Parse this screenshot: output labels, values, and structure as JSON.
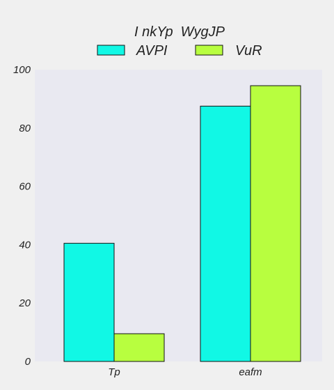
{
  "chart_data": {
    "type": "bar",
    "title": "",
    "xlabel": "",
    "ylabel": "",
    "categories": [
      "Tp",
      "eafm"
    ],
    "series": [
      {
        "name": "AVPI",
        "values": [
          40.5,
          87.5
        ],
        "color": "#11f8e5"
      },
      {
        "name": "VuR",
        "values": [
          9.5,
          94.5
        ],
        "color": "#b8fe3f"
      }
    ],
    "ylim": [
      0,
      100
    ],
    "yticks": [
      0,
      20,
      40,
      60,
      80,
      100
    ],
    "grid": false,
    "legend": {
      "title": "I nkYp  WygJP",
      "placement": "top-center",
      "columns": 2
    },
    "colors": {
      "plot_background": "#e9e9f1",
      "figure_background": "#f0f0f0",
      "bar_edge": "#111111"
    }
  }
}
